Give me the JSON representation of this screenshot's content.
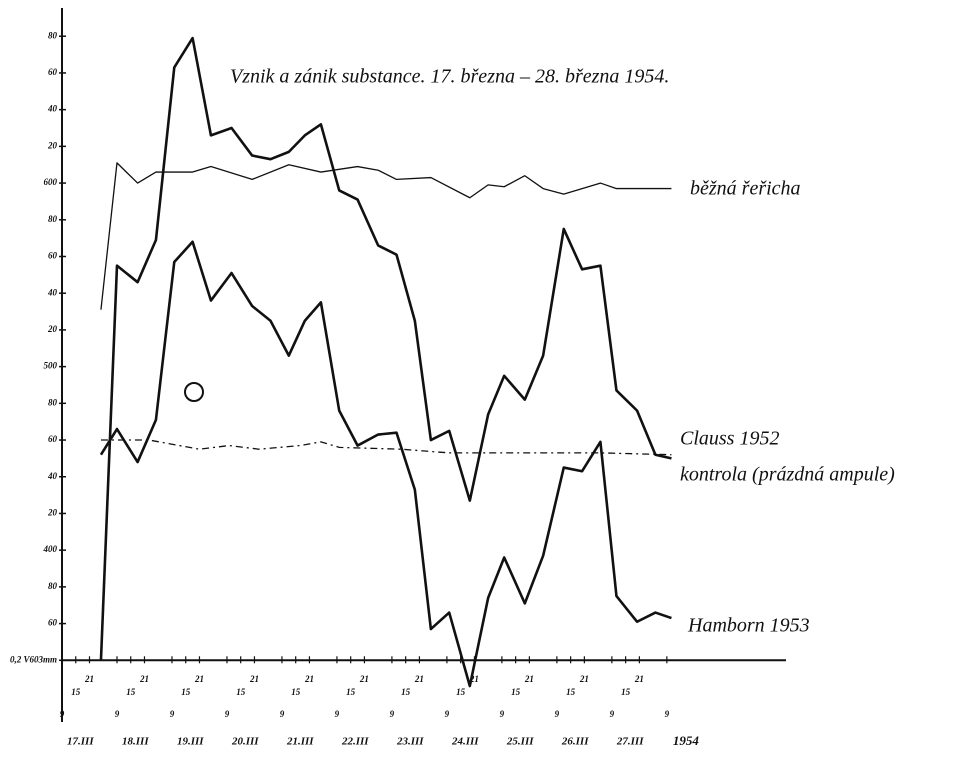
{
  "chart_data": {
    "type": "line",
    "title": "Vznik a zánik substance. 17. března – 28. března 1954.",
    "year_label": "1954",
    "xlim": [
      9,
      325
    ],
    "ylim": [
      320,
      695
    ],
    "yticks": [
      {
        "value": 340,
        "label": "0,2 V603mm"
      },
      {
        "value": 360,
        "label": "60"
      },
      {
        "value": 380,
        "label": "80"
      },
      400,
      {
        "value": 420,
        "label": "20"
      },
      {
        "value": 440,
        "label": "40"
      },
      {
        "value": 460,
        "label": "60"
      },
      {
        "value": 480,
        "label": "80"
      },
      500,
      {
        "value": 520,
        "label": "20"
      },
      {
        "value": 540,
        "label": "40"
      },
      {
        "value": 560,
        "label": "60"
      },
      {
        "value": 580,
        "label": "80"
      },
      600,
      {
        "value": 620,
        "label": "20"
      },
      {
        "value": 640,
        "label": "40"
      },
      {
        "value": 660,
        "label": "60"
      },
      {
        "value": 680,
        "label": "80"
      }
    ],
    "xticks": [
      {
        "value": 17,
        "label": "17.III"
      },
      {
        "value": 41,
        "label": "18.III"
      },
      {
        "value": 65,
        "label": "19.III"
      },
      {
        "value": 89,
        "label": "20.III"
      },
      {
        "value": 113,
        "label": "21.III"
      },
      {
        "value": 137,
        "label": "22.III"
      },
      {
        "value": 161,
        "label": "23.III"
      },
      {
        "value": 185,
        "label": "24.III"
      },
      {
        "value": 209,
        "label": "25.III"
      },
      {
        "value": 233,
        "label": "26.III"
      },
      {
        "value": 257,
        "label": "27.III"
      }
    ],
    "hour_ticks": [
      9,
      15,
      21,
      {
        "value": 33,
        "label": "9"
      },
      {
        "value": 39,
        "label": "15"
      },
      {
        "value": 45,
        "label": "21"
      },
      {
        "value": 57,
        "label": "9"
      },
      {
        "value": 63,
        "label": "15"
      },
      {
        "value": 69,
        "label": "21"
      },
      {
        "value": 81,
        "label": "9"
      },
      {
        "value": 87,
        "label": "15"
      },
      {
        "value": 93,
        "label": "21"
      },
      {
        "value": 105,
        "label": "9"
      },
      {
        "value": 111,
        "label": "15"
      },
      {
        "value": 117,
        "label": "21"
      },
      {
        "value": 129,
        "label": "9"
      },
      {
        "value": 135,
        "label": "15"
      },
      {
        "value": 141,
        "label": "21"
      },
      {
        "value": 153,
        "label": "9"
      },
      {
        "value": 159,
        "label": "15"
      },
      {
        "value": 165,
        "label": "21"
      },
      {
        "value": 177,
        "label": "9"
      },
      {
        "value": 183,
        "label": "15"
      },
      {
        "value": 189,
        "label": "21"
      },
      {
        "value": 201,
        "label": "9"
      },
      {
        "value": 207,
        "label": "15"
      },
      {
        "value": 213,
        "label": "21"
      },
      {
        "value": 225,
        "label": "9"
      },
      {
        "value": 231,
        "label": "15"
      },
      {
        "value": 237,
        "label": "21"
      },
      {
        "value": 249,
        "label": "9"
      },
      {
        "value": 255,
        "label": "15"
      },
      {
        "value": 261,
        "label": "21"
      },
      {
        "value": 273,
        "label": "9"
      }
    ],
    "series": [
      {
        "name": "běžná řeřicha",
        "color": "#111111",
        "line_style": "thin",
        "x": [
          26,
          33,
          42,
          50,
          66,
          74,
          92,
          108,
          122,
          138,
          147,
          155,
          170,
          187,
          195,
          202,
          211,
          219,
          228,
          244,
          251,
          275
        ],
        "values": [
          531,
          611,
          600,
          606,
          606,
          609,
          602,
          610,
          606,
          609,
          607,
          602,
          603,
          592,
          599,
          598,
          604,
          597,
          594,
          600,
          597,
          597
        ]
      },
      {
        "name": "Clauss 1952",
        "color": "#111111",
        "line_style": "thick",
        "x": [
          26,
          33,
          42,
          50,
          58,
          66,
          74,
          83,
          92,
          100,
          108,
          115,
          122,
          130,
          138,
          147,
          155,
          163,
          170,
          178,
          187,
          195,
          202,
          211,
          219,
          228,
          236,
          244,
          251,
          260,
          268,
          275
        ],
        "values": [
          340,
          555,
          546,
          569,
          663,
          679,
          626,
          630,
          615,
          613,
          617,
          626,
          632,
          596,
          591,
          566,
          561,
          525,
          460,
          465,
          427,
          474,
          495,
          482,
          506,
          575,
          553,
          555,
          487,
          476,
          452,
          450
        ]
      },
      {
        "name": "kontrola (prázdná ampule)",
        "color": "#111111",
        "line_style": "dashed",
        "x": [
          26,
          47,
          69,
          82,
          95,
          113,
          122,
          130,
          157,
          178,
          200,
          222,
          244,
          275
        ],
        "values": [
          460,
          460,
          455,
          457,
          455,
          457,
          459,
          456,
          455,
          453,
          453,
          453,
          453,
          452
        ]
      },
      {
        "name": "Hamborn 1953",
        "color": "#111111",
        "line_style": "thick",
        "x": [
          26,
          33,
          42,
          50,
          58,
          66,
          74,
          83,
          92,
          100,
          108,
          115,
          122,
          130,
          138,
          147,
          155,
          163,
          170,
          178,
          187,
          195,
          202,
          211,
          219,
          228,
          236,
          244,
          251,
          260,
          268,
          275
        ],
        "values": [
          452,
          466,
          448,
          471,
          557,
          568,
          536,
          551,
          533,
          525,
          506,
          525,
          535,
          476,
          457,
          463,
          464,
          433,
          357,
          366,
          326,
          374,
          396,
          371,
          397,
          445,
          443,
          459,
          375,
          361,
          366,
          363
        ]
      }
    ]
  }
}
